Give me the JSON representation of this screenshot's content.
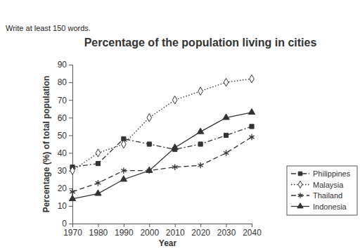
{
  "chart_data": {
    "type": "line",
    "title": "Percentage of the population living in cities",
    "annotations": [
      "Write at least 150 words."
    ],
    "x_label": "Year",
    "y_label": "Percentage (%) of total population",
    "x": [
      1970,
      1980,
      1990,
      2000,
      2010,
      2020,
      2030,
      2040
    ],
    "xlim": [
      1970,
      2040
    ],
    "xticks": [
      1970,
      1980,
      1990,
      2000,
      2010,
      2020,
      2030,
      2040
    ],
    "ylim": [
      0,
      90
    ],
    "yticks": [
      0,
      10,
      20,
      30,
      40,
      50,
      60,
      70,
      80,
      90
    ],
    "grid": false,
    "legend": "right",
    "series": [
      {
        "name": "Philippines",
        "color": "#333333",
        "marker": "square",
        "line_style": "dashdot",
        "values": [
          32,
          34,
          48,
          45,
          42,
          45,
          50,
          55
        ]
      },
      {
        "name": "Malaysia",
        "color": "#333333",
        "marker": "open-diamond",
        "line_style": "dotted",
        "values": [
          30,
          40,
          45,
          60,
          70,
          75,
          80,
          82
        ]
      },
      {
        "name": "Thailand",
        "color": "#333333",
        "marker": "asterisk",
        "line_style": "dashed",
        "values": [
          18,
          23,
          30,
          30,
          32,
          33,
          40,
          49
        ]
      },
      {
        "name": "Indonesia",
        "color": "#333333",
        "marker": "triangle",
        "line_style": "solid",
        "values": [
          14,
          17,
          25,
          30,
          43,
          52,
          60,
          63
        ]
      }
    ]
  }
}
